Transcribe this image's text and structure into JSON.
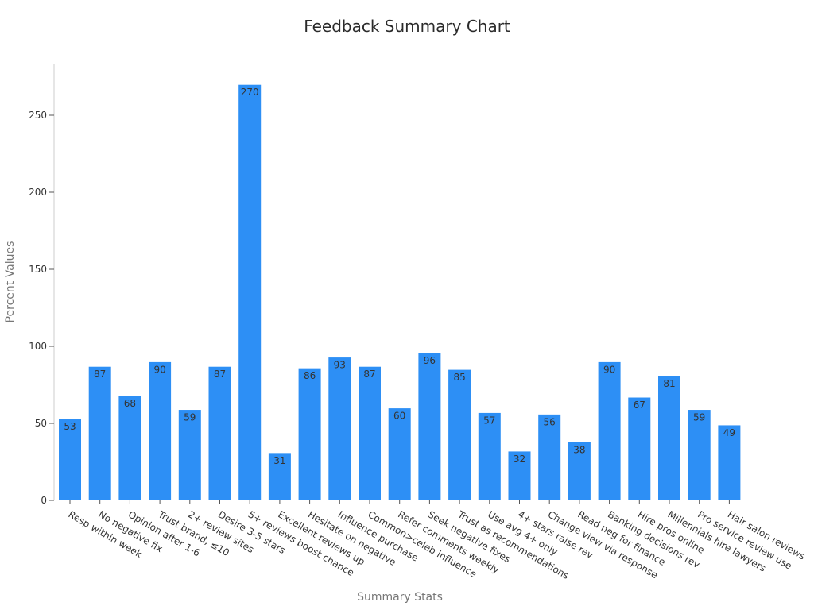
{
  "chart_data": {
    "type": "bar",
    "title": "Feedback Summary Chart",
    "xlabel": "Summary Stats",
    "ylabel": "Percent Values",
    "ylim": [
      0,
      280
    ],
    "yticks": [
      0,
      50,
      100,
      150,
      200,
      250
    ],
    "grid": false,
    "bar_color": "#2d8ff5",
    "categories": [
      "Resp within week",
      "No negative fix",
      "Opinion after 1-6",
      "Trust brand, ≤10",
      "2+ review sites",
      "Desire 3-5 stars",
      "5+ reviews boost chance",
      "Excellent reviews up",
      "Hesitate on negative",
      "Influence purchase",
      "Common>celeb influence",
      "Refer comments weekly",
      "Seek negative fixes",
      "Trust as recommendations",
      "Use avg 4+ only",
      "4+ stars raise rev",
      "Change view via response",
      "Read neg for finance",
      "Banking decisions rev",
      "Hire pros online",
      "Millennials hire lawyers",
      "Pro service review use",
      "Hair salon reviews"
    ],
    "values": [
      53,
      87,
      68,
      90,
      59,
      87,
      270,
      31,
      86,
      93,
      87,
      60,
      96,
      85,
      57,
      32,
      56,
      38,
      90,
      67,
      81,
      59,
      49
    ]
  }
}
